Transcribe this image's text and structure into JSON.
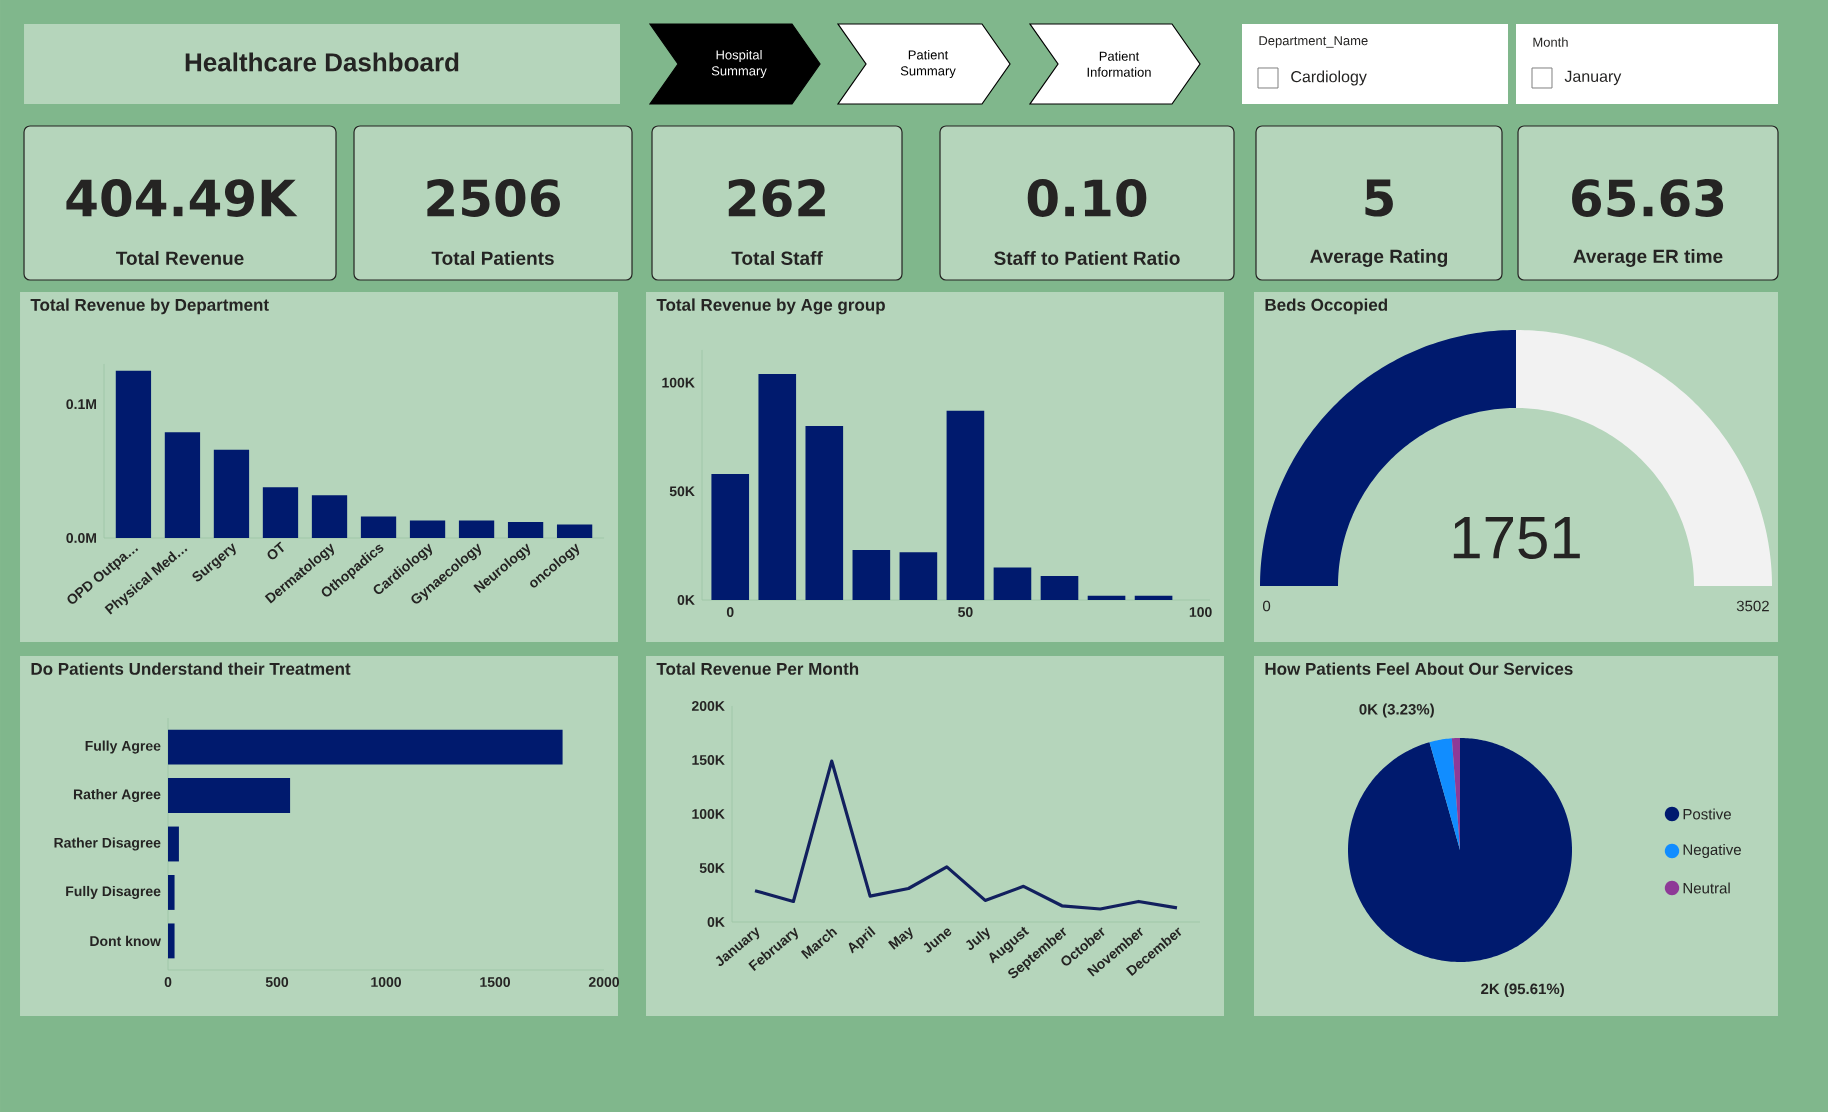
{
  "chart_data": [
    {
      "type": "other",
      "title": "Healthcare Dashboard",
      "annotations": [
        "Hospital Summary",
        "Patient Summary",
        "Patient Information",
        "Department_Name",
        "Cardiology",
        "Month",
        "January",
        "404.49K",
        "Total Revenue",
        "2506",
        "Total Patients",
        "262",
        "Total Staff",
        "0.10",
        "Staff to Patient Ratio",
        "5",
        "Average Rating",
        "65.63",
        "Average ER time"
      ]
    },
    {
      "type": "bar",
      "title": "Total Revenue by Department",
      "categories": [
        "OPD Outpa…",
        "Physical Med…",
        "Surgery",
        "OT",
        "Dermatology",
        "Othopadics",
        "Cardiology",
        "Gynaecology",
        "Neurology",
        "oncology"
      ],
      "values": [
        0.125,
        0.079,
        0.066,
        0.038,
        0.032,
        0.016,
        0.013,
        0.013,
        0.012,
        0.01
      ],
      "color": "#001a6e",
      "ylim": [
        0,
        0.13
      ],
      "yticks": [
        {
          "value": 0,
          "label": "0.0M"
        },
        {
          "value": 0.1,
          "label": "0.1M"
        }
      ]
    },
    {
      "type": "bar",
      "title": "Total Revenue by Age group",
      "x": [
        0,
        10,
        20,
        30,
        40,
        50,
        60,
        70,
        80,
        90
      ],
      "values": [
        58,
        104,
        80,
        23,
        22,
        87,
        15,
        11,
        2,
        2
      ],
      "color": "#001a6e",
      "xlim": [
        -6,
        102
      ],
      "xticks": [
        0,
        50,
        100
      ],
      "ylim": [
        0,
        115
      ],
      "yticks": [
        {
          "value": 0,
          "label": "0K"
        },
        {
          "value": 50,
          "label": "50K"
        },
        {
          "value": 100,
          "label": "100K"
        }
      ]
    },
    {
      "type": "bar",
      "orientation": "horizontal",
      "title": "Do Patients Understand their Treatment",
      "categories": [
        "Fully Agree",
        "Rather Agree",
        "Rather Disagree",
        "Fully Disagree",
        "Dont know"
      ],
      "values": [
        1810,
        560,
        50,
        30,
        30
      ],
      "color": "#001a6e",
      "xlim": [
        0,
        2000
      ],
      "xticks": [
        0,
        500,
        1000,
        1500,
        2000
      ]
    },
    {
      "type": "line",
      "title": "Total Revenue Per Month",
      "categories": [
        "January",
        "February",
        "March",
        "April",
        "May",
        "June",
        "July",
        "August",
        "September",
        "October",
        "November",
        "December"
      ],
      "values": [
        29,
        19,
        149,
        24,
        31,
        51,
        20,
        33,
        15,
        12,
        19,
        13
      ],
      "color": "#12205e",
      "ylim": [
        0,
        200
      ],
      "yticks": [
        {
          "value": 0,
          "label": "0K"
        },
        {
          "value": 50,
          "label": "50K"
        },
        {
          "value": 100,
          "label": "100K"
        },
        {
          "value": 150,
          "label": "150K"
        },
        {
          "value": 200,
          "label": "200K"
        }
      ]
    },
    {
      "type": "donut",
      "title": "Beds Occopied",
      "categories": [
        null,
        null
      ],
      "values": [
        1751,
        1751
      ],
      "colors": [
        "#001a6e",
        "#f2f2f2"
      ],
      "value_labels": [
        "1751",
        null
      ],
      "annotations": [
        "0",
        "3502"
      ]
    },
    {
      "type": "pie",
      "title": "How Patients Feel About Our Services",
      "categories": [
        "Postive",
        "Negative",
        "Neutral"
      ],
      "values": [
        95.61,
        3.23,
        1.16
      ],
      "colors": [
        "#001a6e",
        "#118dff",
        "#8e3a97"
      ],
      "value_labels": [
        "2K (95.61%)",
        "0K (3.23%)",
        null
      ],
      "legend": "right"
    }
  ]
}
